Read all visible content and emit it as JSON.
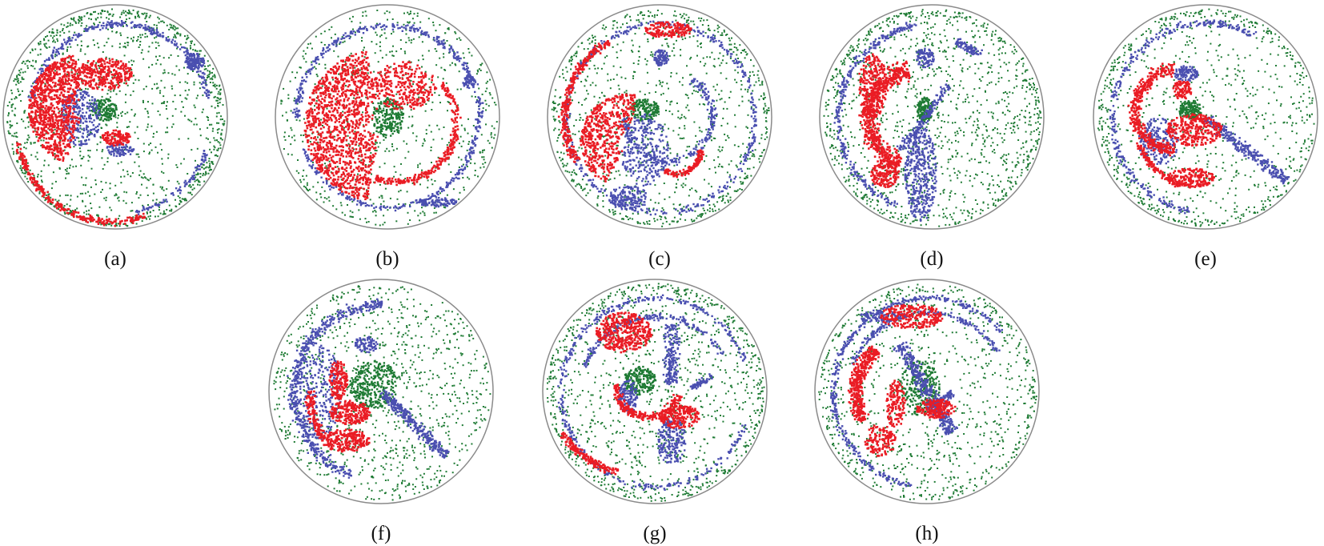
{
  "panels": [
    {
      "label": "(a)",
      "profile": "a"
    },
    {
      "label": "(b)",
      "profile": "b"
    },
    {
      "label": "(c)",
      "profile": "c"
    },
    {
      "label": "(d)",
      "profile": "d"
    },
    {
      "label": "(e)",
      "profile": "e"
    },
    {
      "label": "(f)",
      "profile": "f"
    },
    {
      "label": "(g)",
      "profile": "g"
    },
    {
      "label": "(h)",
      "profile": "h"
    }
  ],
  "colors": {
    "green": "#1e7b34",
    "blue": "#4a4fb0",
    "red": "#ea1c24",
    "outline": "#8a8a8a"
  }
}
